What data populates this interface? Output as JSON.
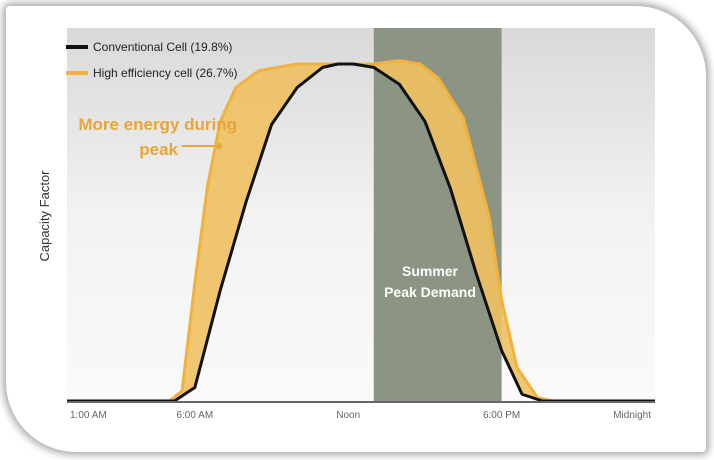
{
  "chart_data": {
    "type": "area",
    "ylabel": "Capacity Factor",
    "xlabel": "",
    "x_ticks": [
      "1:00 AM",
      "6:00 AM",
      "Noon",
      "6:00 PM",
      "Midnight"
    ],
    "x_tick_hours": [
      1,
      6,
      12,
      18,
      24
    ],
    "xlim": [
      1,
      24
    ],
    "ylim": [
      0,
      1
    ],
    "legend": {
      "placement": "top-left"
    },
    "series": [
      {
        "name": "Conventional Cell (19.8%)",
        "color": "#111111",
        "x": [
          1,
          5.2,
          6.0,
          7.0,
          8.0,
          9.0,
          10.0,
          11.0,
          11.6,
          12.2,
          13.0,
          14.0,
          15.0,
          16.0,
          17.0,
          18.0,
          18.8,
          19.6,
          24
        ],
        "values": [
          0,
          0,
          0.04,
          0.33,
          0.59,
          0.82,
          0.93,
          0.99,
          1.0,
          1.0,
          0.99,
          0.94,
          0.83,
          0.63,
          0.38,
          0.15,
          0.02,
          0,
          0
        ]
      },
      {
        "name": "High efficiency cell (26.7%)",
        "color": "#f0b23c",
        "x": [
          1,
          5.0,
          5.5,
          6.0,
          6.5,
          7.0,
          7.6,
          8.5,
          10.0,
          11.0,
          12.0,
          13.0,
          14.0,
          14.8,
          15.5,
          16.5,
          17.5,
          18.0,
          18.6,
          19.4,
          20.0,
          24
        ],
        "values": [
          0,
          0,
          0.03,
          0.35,
          0.64,
          0.83,
          0.93,
          0.98,
          1.0,
          1.0,
          1.0,
          1.0,
          1.01,
          1.0,
          0.96,
          0.84,
          0.55,
          0.3,
          0.1,
          0.01,
          0,
          0
        ]
      }
    ],
    "shaded_band": {
      "label": [
        "Summer",
        "Peak Demand"
      ],
      "x_start": 13.0,
      "x_end": 18.0,
      "color": "#8c9484"
    },
    "annotation": {
      "lines": [
        "More energy during",
        "peak"
      ],
      "points_to_x": 9.5,
      "color": "#e8a53a"
    },
    "fill_between_color": "#f0c060",
    "grid": false
  }
}
